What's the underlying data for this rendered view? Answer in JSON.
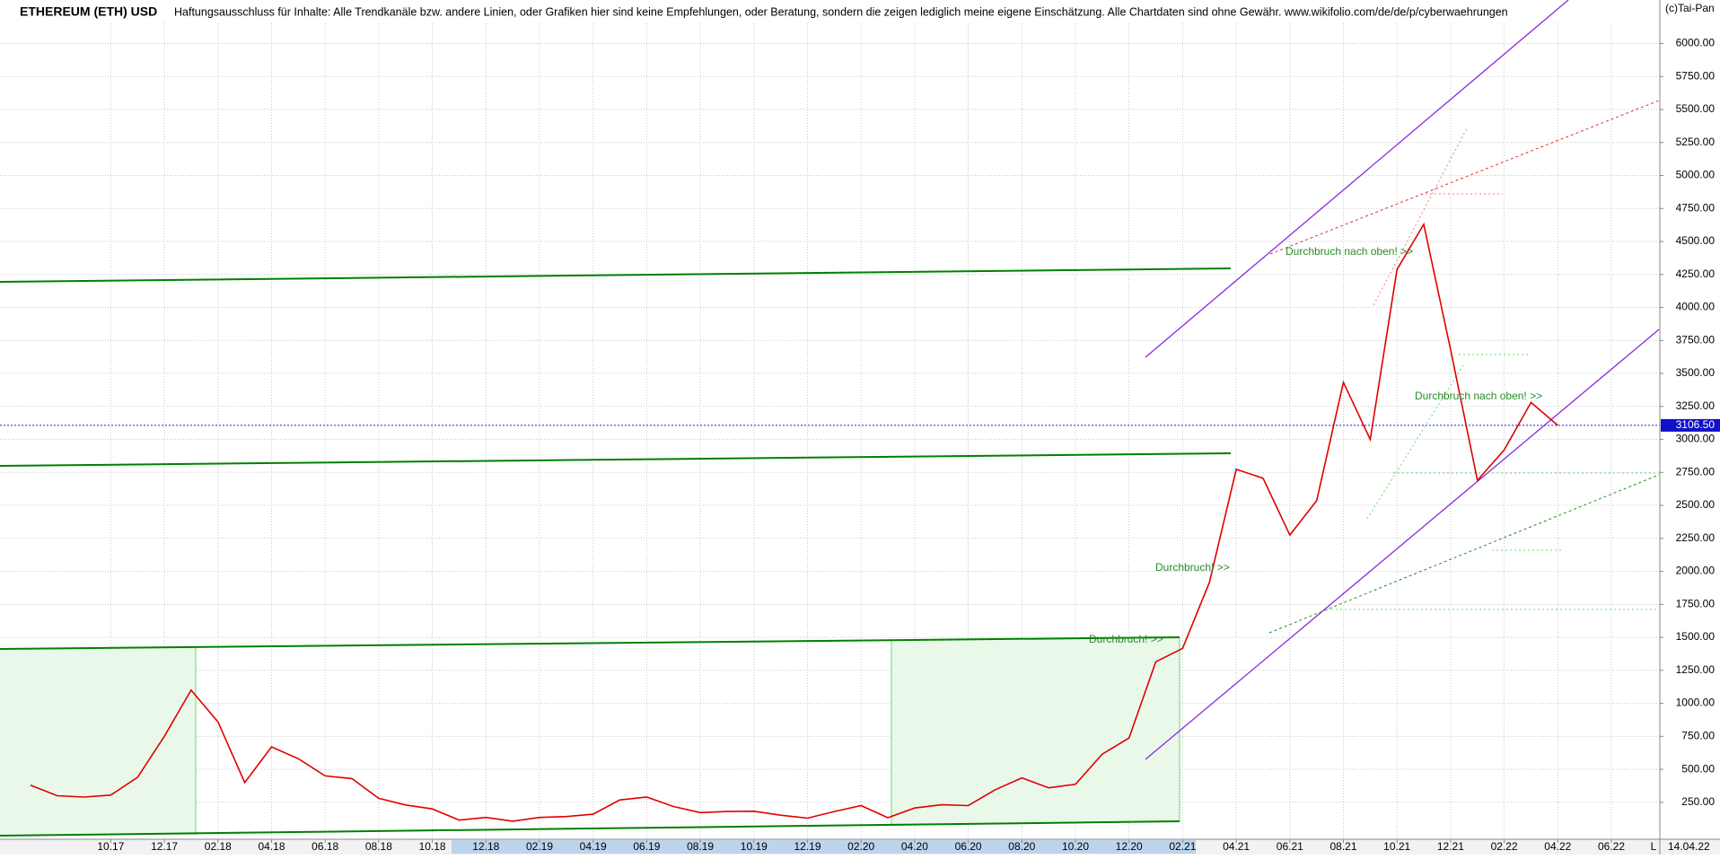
{
  "chart_data": {
    "type": "line",
    "title": "ETHEREUM (ETH) USD",
    "subtitle": "Haftungsausschluss für Inhalte: Alle Trendkanäle bzw. andere Linien, oder Grafiken hier sind keine Empfehlungen, oder Beratung, sondern die zeigen lediglich meine eigene Einschätzung. Alle Chartdaten sind ohne Gewähr.  www.wikifolio.com/de/de/p/cyberwaehrungen",
    "copyright": "(c)Tai-Pan",
    "last_date": "14.04.22",
    "axis_marker": "L",
    "annotations": [
      "Durchbruch nach oben! >>",
      "Durchbruch nach oben! >>",
      "Durchbruch! >>",
      "Durchbruch! >>"
    ],
    "last_price": {
      "value": 3106.5,
      "label": "3106.50"
    },
    "grid": true,
    "ylim": [
      -30,
      6330
    ],
    "yticks": [
      {
        "value": 250,
        "label": "250.00"
      },
      {
        "value": 500,
        "label": "500.00"
      },
      {
        "value": 750,
        "label": "750.00"
      },
      {
        "value": 1000,
        "label": "1000.00"
      },
      {
        "value": 1250,
        "label": "1250.00"
      },
      {
        "value": 1500,
        "label": "1500.00"
      },
      {
        "value": 1750,
        "label": "1750.00"
      },
      {
        "value": 2000,
        "label": "2000.00"
      },
      {
        "value": 2250,
        "label": "2250.00"
      },
      {
        "value": 2500,
        "label": "2500.00"
      },
      {
        "value": 2750,
        "label": "2750.00"
      },
      {
        "value": 3000,
        "label": "3000.00"
      },
      {
        "value": 3250,
        "label": "3250.00"
      },
      {
        "value": 3500,
        "label": "3500.00"
      },
      {
        "value": 3750,
        "label": "3750.00"
      },
      {
        "value": 4000,
        "label": "4000.00"
      },
      {
        "value": 4250,
        "label": "4250.00"
      },
      {
        "value": 4500,
        "label": "4500.00"
      },
      {
        "value": 4750,
        "label": "4750.00"
      },
      {
        "value": 5000,
        "label": "5000.00"
      },
      {
        "value": 5250,
        "label": "5250.00"
      },
      {
        "value": 5500,
        "label": "5500.00"
      },
      {
        "value": 5750,
        "label": "5750.00"
      },
      {
        "value": 6000,
        "label": "6000.00"
      }
    ],
    "xticks": [
      "10.17",
      "12.17",
      "02.18",
      "04.18",
      "06.18",
      "08.18",
      "10.18",
      "12.18",
      "02.19",
      "04.19",
      "06.19",
      "08.19",
      "10.19",
      "12.19",
      "02.20",
      "04.20",
      "06.20",
      "08.20",
      "10.20",
      "12.20",
      "02.21",
      "04.21",
      "06.21",
      "08.21",
      "10.21",
      "12.21",
      "02.22",
      "04.22",
      "06.22"
    ],
    "x": [
      "07.17",
      "08.17",
      "09.17",
      "10.17",
      "11.17",
      "12.17",
      "01.18",
      "02.18",
      "03.18",
      "04.18",
      "05.18",
      "06.18",
      "07.18",
      "08.18",
      "09.18",
      "10.18",
      "11.18",
      "12.18",
      "01.19",
      "02.19",
      "03.19",
      "04.19",
      "05.19",
      "06.19",
      "07.19",
      "08.19",
      "09.19",
      "10.19",
      "11.19",
      "12.19",
      "01.20",
      "02.20",
      "03.20",
      "04.20",
      "05.20",
      "06.20",
      "07.20",
      "08.20",
      "09.20",
      "10.20",
      "11.20",
      "12.20",
      "01.21",
      "02.21",
      "03.21",
      "04.21",
      "05.21",
      "06.21",
      "07.21",
      "08.21",
      "09.21",
      "10.21",
      "11.21",
      "12.21",
      "01.22",
      "02.22",
      "03.22",
      "04.22"
    ],
    "series": [
      {
        "name": "ETH",
        "color": "#e00000",
        "values": [
          380,
          300,
          290,
          305,
          440,
          750,
          1100,
          860,
          400,
          670,
          580,
          450,
          430,
          280,
          230,
          200,
          115,
          135,
          107,
          135,
          142,
          160,
          268,
          290,
          218,
          172,
          180,
          182,
          152,
          130,
          180,
          225,
          133,
          207,
          231,
          225,
          345,
          435,
          360,
          386,
          615,
          737,
          1315,
          1417,
          1918,
          2773,
          2706,
          2275,
          2536,
          3433,
          3000,
          4288,
          4630,
          3680,
          2690,
          2920,
          3280,
          3106.5
        ]
      }
    ]
  }
}
